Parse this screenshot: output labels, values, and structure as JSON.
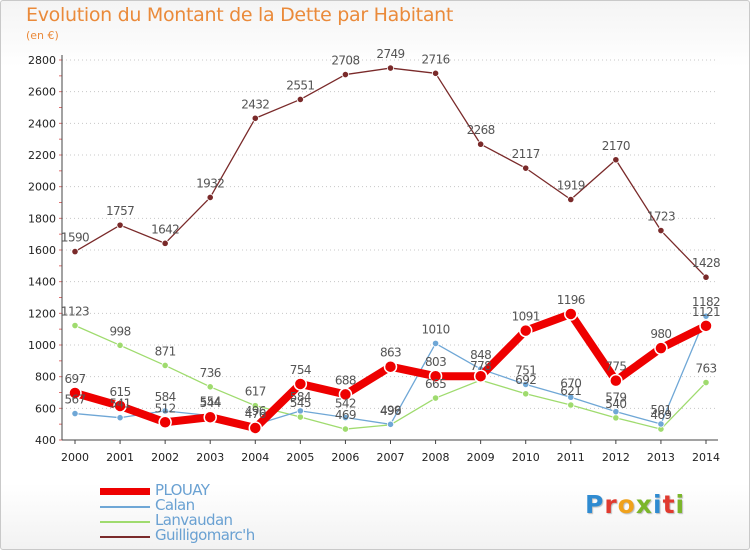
{
  "title": "Evolution du Montant de la Dette par Habitant",
  "subtitle": "(en €)",
  "logo": {
    "text": "Proxiti",
    "letters": [
      {
        "ch": "P",
        "color": "#2f8bd1"
      },
      {
        "ch": "r",
        "color": "#e03a2f"
      },
      {
        "ch": "o",
        "color": "#f0a21c"
      },
      {
        "ch": "x",
        "color": "#7bb62a"
      },
      {
        "ch": "i",
        "color": "#2f8bd1"
      },
      {
        "ch": "t",
        "color": "#e03a2f"
      },
      {
        "ch": "i",
        "color": "#7bb62a"
      }
    ]
  },
  "chart_data": {
    "type": "line",
    "x": [
      2000,
      2001,
      2002,
      2003,
      2004,
      2005,
      2006,
      2007,
      2008,
      2009,
      2010,
      2011,
      2012,
      2013,
      2014
    ],
    "xlabels": [
      "2000",
      "2001",
      "2002",
      "2003",
      "2004",
      "2005",
      "2006",
      "2007",
      "2008",
      "2009",
      "2010",
      "2011",
      "2012",
      "2013",
      "2014"
    ],
    "ylim": [
      400,
      2800
    ],
    "yticks": [
      400,
      600,
      800,
      1000,
      1200,
      1400,
      1600,
      1800,
      2000,
      2200,
      2400,
      2600,
      2800
    ],
    "ytick_labels": [
      "400",
      "600",
      "800",
      "1000",
      "1200",
      "1400",
      "1600",
      "1800",
      "2000",
      "2200",
      "2400",
      "2600",
      "2800"
    ],
    "grid": "horizontal-dotted",
    "legend_position": "bottom-left",
    "series": [
      {
        "name": "PLOUAY",
        "color": "#ee0000",
        "values": [
          697,
          615,
          512,
          544,
          476,
          754,
          688,
          863,
          803,
          803,
          1091,
          1196,
          775,
          980,
          1121
        ],
        "labels": [
          "697",
          "615",
          "512",
          "544",
          "476",
          "754",
          "688",
          "863",
          "803",
          "",
          "1091",
          "1196",
          "775",
          "980",
          "1121"
        ]
      },
      {
        "name": "Calan",
        "color": "#6fa7d6",
        "values": [
          567,
          541,
          584,
          554,
          496,
          584,
          542,
          499,
          1010,
          848,
          751,
          670,
          579,
          501,
          1182
        ],
        "labels": [
          "567",
          "541",
          "584",
          "554",
          "496",
          "584",
          "542",
          "499",
          "1010",
          "848",
          "751",
          "670",
          "579",
          "501",
          "1182"
        ]
      },
      {
        "name": "Lanvaudan",
        "color": "#9fdb6e",
        "values": [
          1123,
          998,
          871,
          736,
          617,
          545,
          469,
          496,
          665,
          778,
          692,
          621,
          540,
          469,
          763
        ],
        "labels": [
          "1123",
          "998",
          "871",
          "736",
          "617",
          "545",
          "469",
          "496",
          "665",
          "778",
          "692",
          "621",
          "540",
          "469",
          "763"
        ]
      },
      {
        "name": "Guilligomarc'h",
        "color": "#7a2a2a",
        "values": [
          1590,
          1757,
          1642,
          1932,
          2432,
          2551,
          2708,
          2749,
          2716,
          2268,
          2117,
          1919,
          2170,
          1723,
          1428
        ],
        "labels": [
          "1590",
          "1757",
          "1642",
          "1932",
          "2432",
          "2551",
          "2708",
          "2749",
          "2716",
          "2268",
          "2117",
          "1919",
          "2170",
          "1723",
          "1428"
        ]
      }
    ]
  }
}
